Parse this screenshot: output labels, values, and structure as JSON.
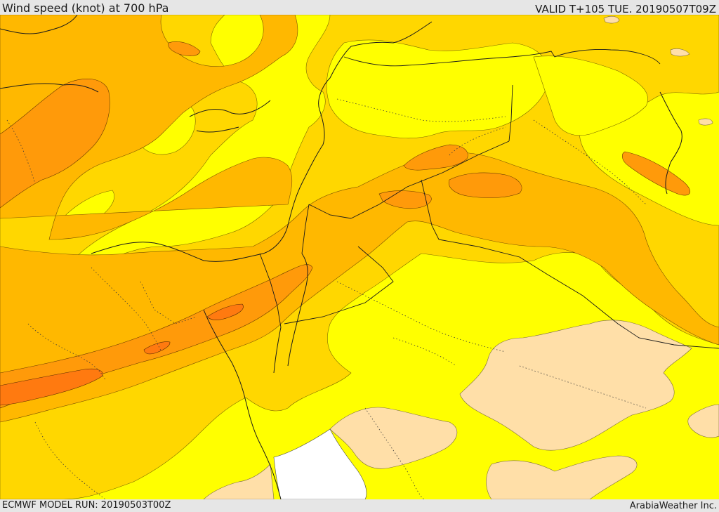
{
  "header": {
    "title": "Wind speed (knot) at 700 hPa",
    "valid": "VALID T+105 TUE. 20190507T09Z"
  },
  "footer": {
    "model_run": "ECMWF MODEL RUN: 20190503T00Z",
    "credit": "ArabiaWeather Inc."
  },
  "colors": {
    "band_lowest": "#ffdfa8",
    "band_low": "#ffff00",
    "band_mid": "#ffd700",
    "band_high": "#ffb800",
    "band_higher": "#ff9a0a",
    "band_highest": "#ff7a10",
    "outside_domain": "#ffffff",
    "frame": "#e6e6e6"
  }
}
